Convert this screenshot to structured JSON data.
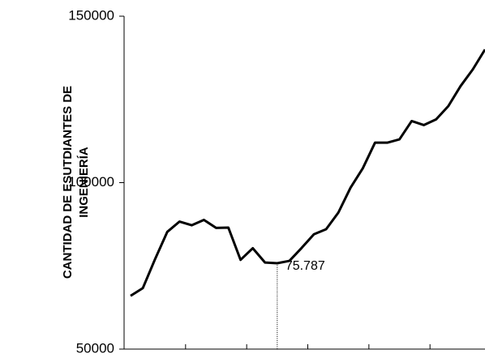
{
  "chart_data": {
    "type": "line",
    "y_label": [
      "CANTIDAD DE ESUTDIANTES DE",
      "INGENIERÍA"
    ],
    "categories": [
      null,
      null,
      null,
      null,
      null,
      null,
      null,
      null,
      null,
      null,
      null,
      null,
      null,
      null,
      null,
      null,
      null,
      null,
      null,
      null,
      null,
      null,
      null,
      null,
      null,
      null,
      null,
      null,
      null,
      null
    ],
    "series": [
      {
        "color": "#000000",
        "values": [
          66000,
          68300,
          77000,
          85200,
          88300,
          87200,
          88800,
          86400,
          86500,
          76800,
          80300,
          76000,
          75787,
          76500,
          80400,
          84500,
          86000,
          91000,
          98500,
          104300,
          112000,
          112000,
          113000,
          118500,
          117300,
          119000,
          123000,
          129000,
          134000,
          140000
        ],
        "value_labels": [
          null,
          null,
          null,
          null,
          null,
          null,
          null,
          null,
          null,
          null,
          null,
          null,
          "75.787",
          null,
          null,
          null,
          null,
          null,
          null,
          null,
          null,
          null,
          null,
          null,
          null,
          null,
          null,
          null,
          null,
          null
        ]
      }
    ],
    "ylim": [
      50000,
      150000
    ],
    "yticks": [
      50000,
      100000,
      150000
    ]
  }
}
